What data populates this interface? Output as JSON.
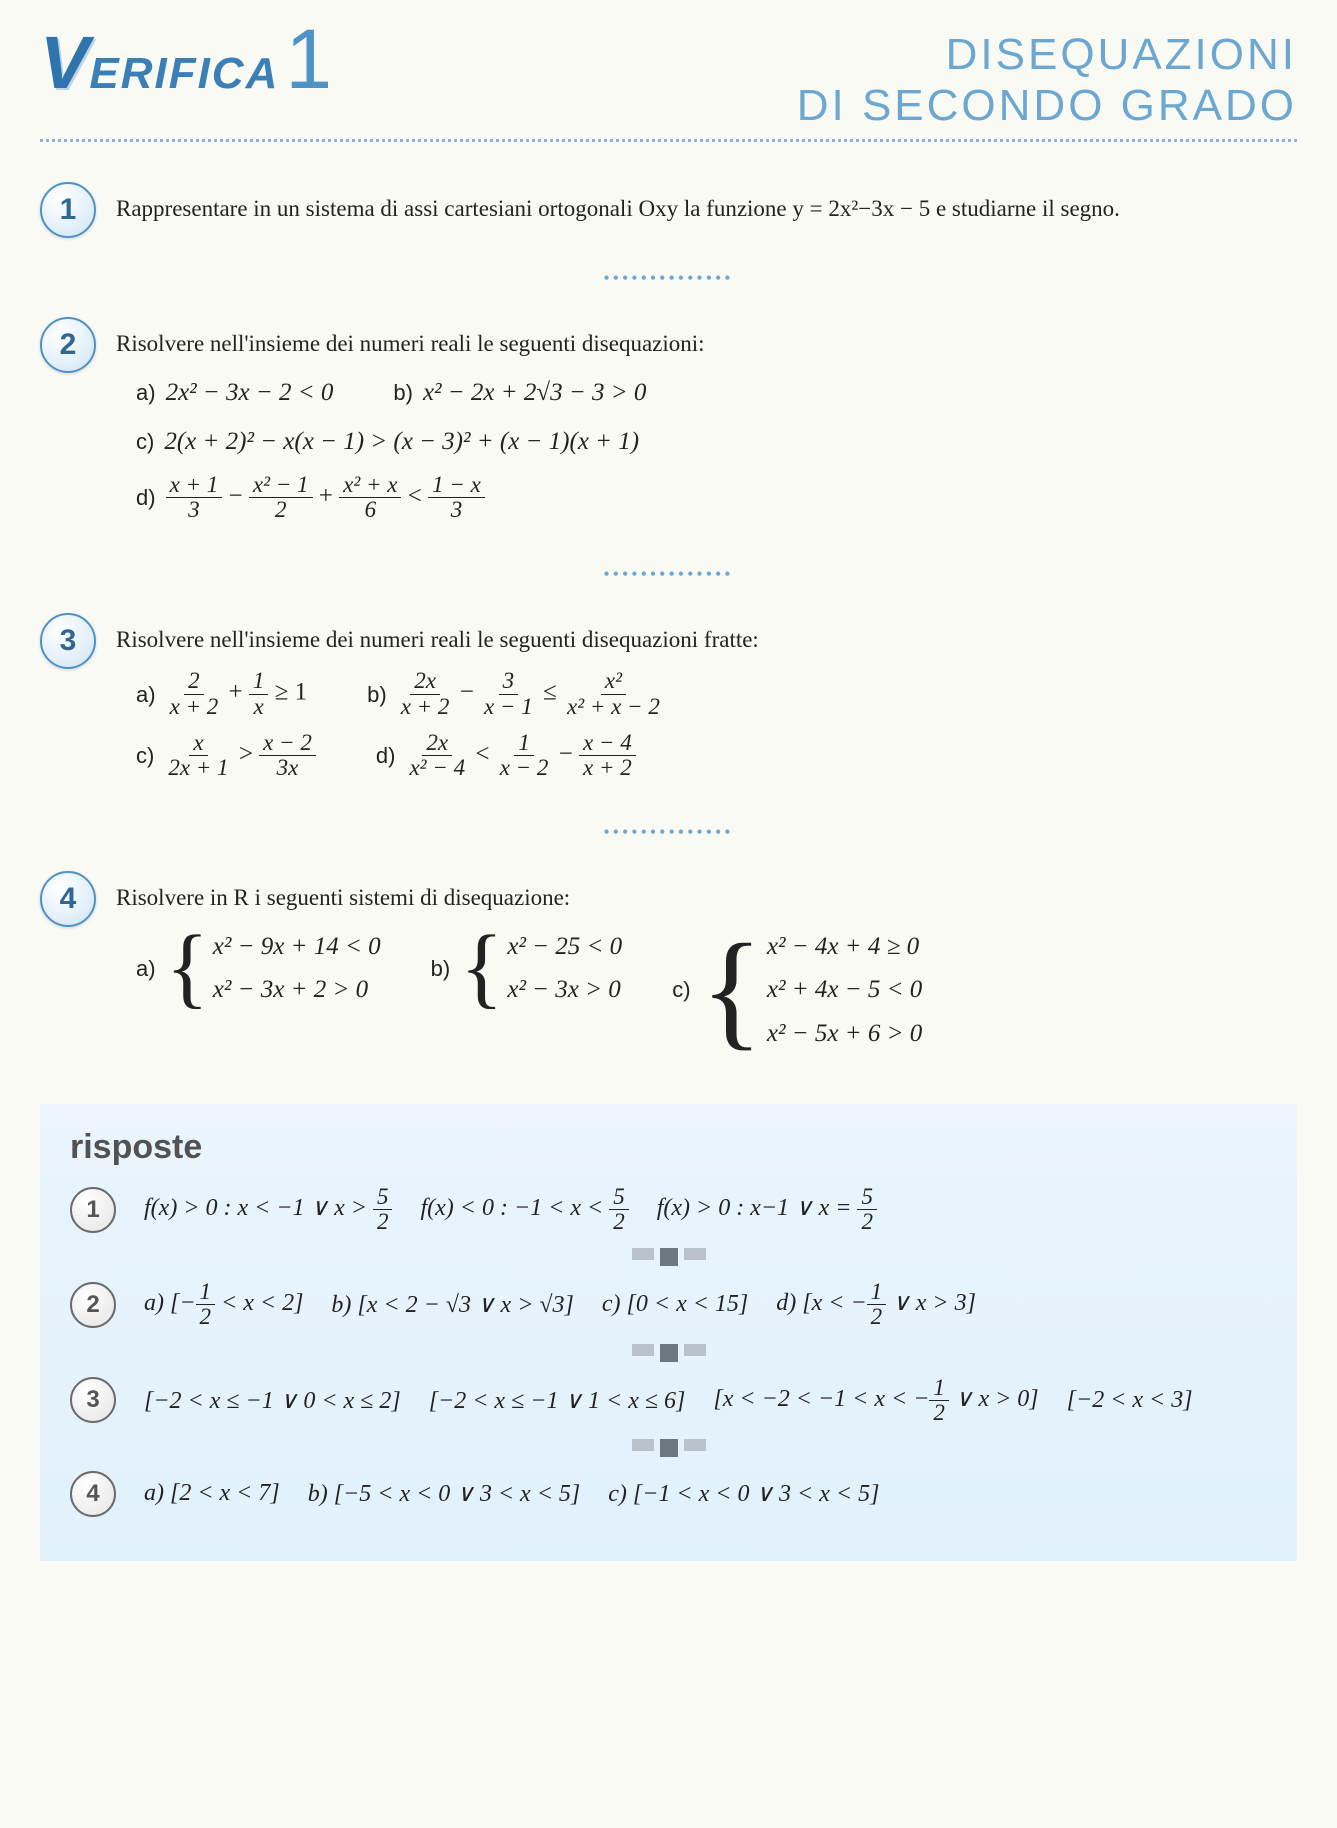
{
  "header": {
    "logo_v": "V",
    "logo_rest": "ERIFICA",
    "logo_num": "1",
    "title_line1": "DISEQUAZIONI",
    "title_line2": "DI SECONDO GRADO"
  },
  "problems": {
    "p1": {
      "num": "1",
      "text": "Rappresentare in un sistema di assi cartesiani ortogonali Oxy la funzione y = 2x²−3x − 5 e studiarne il segno."
    },
    "p2": {
      "num": "2",
      "text": "Risolvere nell'insieme dei numeri reali le seguenti disequazioni:",
      "a": "2x² − 3x − 2 < 0",
      "b": "x² − 2x + 2√3 − 3 > 0",
      "c": "2(x + 2)² − x(x − 1) > (x − 3)² + (x − 1)(x + 1)",
      "d_f1n": "x + 1",
      "d_f1d": "3",
      "d_f2n": "x² − 1",
      "d_f2d": "2",
      "d_f3n": "x² + x",
      "d_f3d": "6",
      "d_f4n": "1 − x",
      "d_f4d": "3"
    },
    "p3": {
      "num": "3",
      "text": "Risolvere nell'insieme dei numeri reali le seguenti disequazioni fratte:",
      "a_f1n": "2",
      "a_f1d": "x + 2",
      "a_f2n": "1",
      "a_f2d": "x",
      "a_rhs": "≥ 1",
      "b_f1n": "2x",
      "b_f1d": "x + 2",
      "b_f2n": "3",
      "b_f2d": "x − 1",
      "b_f3n": "x²",
      "b_f3d": "x² + x − 2",
      "c_f1n": "x",
      "c_f1d": "2x + 1",
      "c_f2n": "x − 2",
      "c_f2d": "3x",
      "d_f1n": "2x",
      "d_f1d": "x² − 4",
      "d_f2n": "1",
      "d_f2d": "x − 2",
      "d_f3n": "x − 4",
      "d_f3d": "x + 2"
    },
    "p4": {
      "num": "4",
      "text": "Risolvere in R i seguenti sistemi di disequazione:",
      "a1": "x² − 9x + 14 < 0",
      "a2": "x² − 3x + 2 > 0",
      "b1": "x² − 25 < 0",
      "b2": "x² − 3x > 0",
      "c1": "x² − 4x + 4 ≥ 0",
      "c2": "x² + 4x − 5 < 0",
      "c3": "x² − 5x + 6 > 0"
    }
  },
  "answers": {
    "title": "risposte",
    "r1": {
      "a": "f(x) > 0 : x < −1 ∨ x > ",
      "a_frac_n": "5",
      "a_frac_d": "2",
      "b": "f(x) < 0 : −1 < x < ",
      "b_frac_n": "5",
      "b_frac_d": "2",
      "c": "f(x) > 0 : x−1 ∨ x = ",
      "c_frac_n": "5",
      "c_frac_d": "2"
    },
    "r2": {
      "a_pre": "a)  [−",
      "a_frac_n": "1",
      "a_frac_d": "2",
      "a_post": " < x < 2]",
      "b": "b)  [x < 2 − √3  ∨  x > √3]",
      "c": "c)  [0 < x < 15]",
      "d_pre": "d)  [x < −",
      "d_frac_n": "1",
      "d_frac_d": "2",
      "d_post": " ∨ x > 3]"
    },
    "r3": {
      "a": "[−2 < x ≤ −1 ∨ 0 < x ≤ 2]",
      "b": "[−2 < x ≤ −1 ∨ 1 < x ≤ 6]",
      "c_pre": "[x < −2 < −1 < x < −",
      "c_frac_n": "1",
      "c_frac_d": "2",
      "c_post": " ∨ x > 0]",
      "d": "[−2 < x < 3]"
    },
    "r4": {
      "a": "a)  [2 < x < 7]",
      "b": "b)  [−5 < x < 0  ∨  3 < x < 5]",
      "c": "c)  [−1 < x < 0  ∨  3 < x < 5]"
    }
  }
}
